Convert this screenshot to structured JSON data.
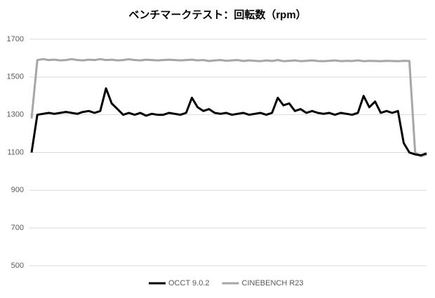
{
  "chart_data": {
    "type": "line",
    "title": "ベンチマークテスト：回転数（rpm）",
    "categories": [
      null,
      null,
      null,
      null,
      null,
      null,
      null,
      null,
      null,
      null,
      null,
      null,
      null,
      null,
      null,
      null,
      null,
      null,
      null,
      null,
      null,
      null,
      null,
      null,
      null,
      null,
      null,
      null,
      null,
      null,
      null,
      null,
      null,
      null,
      null,
      null,
      null,
      null,
      null,
      null,
      null,
      null,
      null,
      null,
      null,
      null,
      null,
      null,
      null,
      null,
      null,
      null,
      null,
      null,
      null,
      null,
      null,
      null,
      null,
      null,
      null,
      null,
      null,
      null,
      null,
      null,
      null,
      null,
      null,
      null
    ],
    "series": [
      {
        "name": "OCCT 9.0.2",
        "color": "#000000",
        "values": [
          1100,
          1300,
          1305,
          1310,
          1305,
          1310,
          1315,
          1310,
          1305,
          1315,
          1320,
          1310,
          1320,
          1440,
          1360,
          1330,
          1300,
          1310,
          1300,
          1310,
          1295,
          1305,
          1300,
          1300,
          1310,
          1305,
          1300,
          1310,
          1390,
          1340,
          1320,
          1330,
          1310,
          1305,
          1310,
          1300,
          1305,
          1310,
          1300,
          1305,
          1310,
          1300,
          1310,
          1390,
          1350,
          1360,
          1320,
          1330,
          1310,
          1320,
          1310,
          1305,
          1310,
          1300,
          1310,
          1305,
          1300,
          1310,
          1400,
          1340,
          1370,
          1310,
          1320,
          1310,
          1320,
          1150,
          1100,
          1090,
          1085,
          1095
        ]
      },
      {
        "name": "CINEBENCH R23",
        "color": "#a6a6a6",
        "values": [
          1280,
          1590,
          1595,
          1590,
          1592,
          1588,
          1590,
          1595,
          1590,
          1588,
          1592,
          1590,
          1595,
          1590,
          1592,
          1588,
          1590,
          1594,
          1590,
          1588,
          1592,
          1590,
          1588,
          1590,
          1592,
          1590,
          1588,
          1590,
          1592,
          1588,
          1590,
          1585,
          1588,
          1590,
          1586,
          1588,
          1590,
          1585,
          1588,
          1586,
          1584,
          1588,
          1585,
          1590,
          1584,
          1586,
          1588,
          1584,
          1586,
          1588,
          1585,
          1584,
          1586,
          1588,
          1584,
          1586,
          1585,
          1588,
          1584,
          1586,
          1585,
          1584,
          1586,
          1585,
          1584,
          1586,
          1585,
          1100,
          1080,
          1090
        ]
      }
    ],
    "ylim": [
      500,
      1700
    ],
    "yticks": [
      500,
      700,
      900,
      1100,
      1300,
      1500,
      1700
    ],
    "grid": true,
    "legend": "bottom"
  }
}
